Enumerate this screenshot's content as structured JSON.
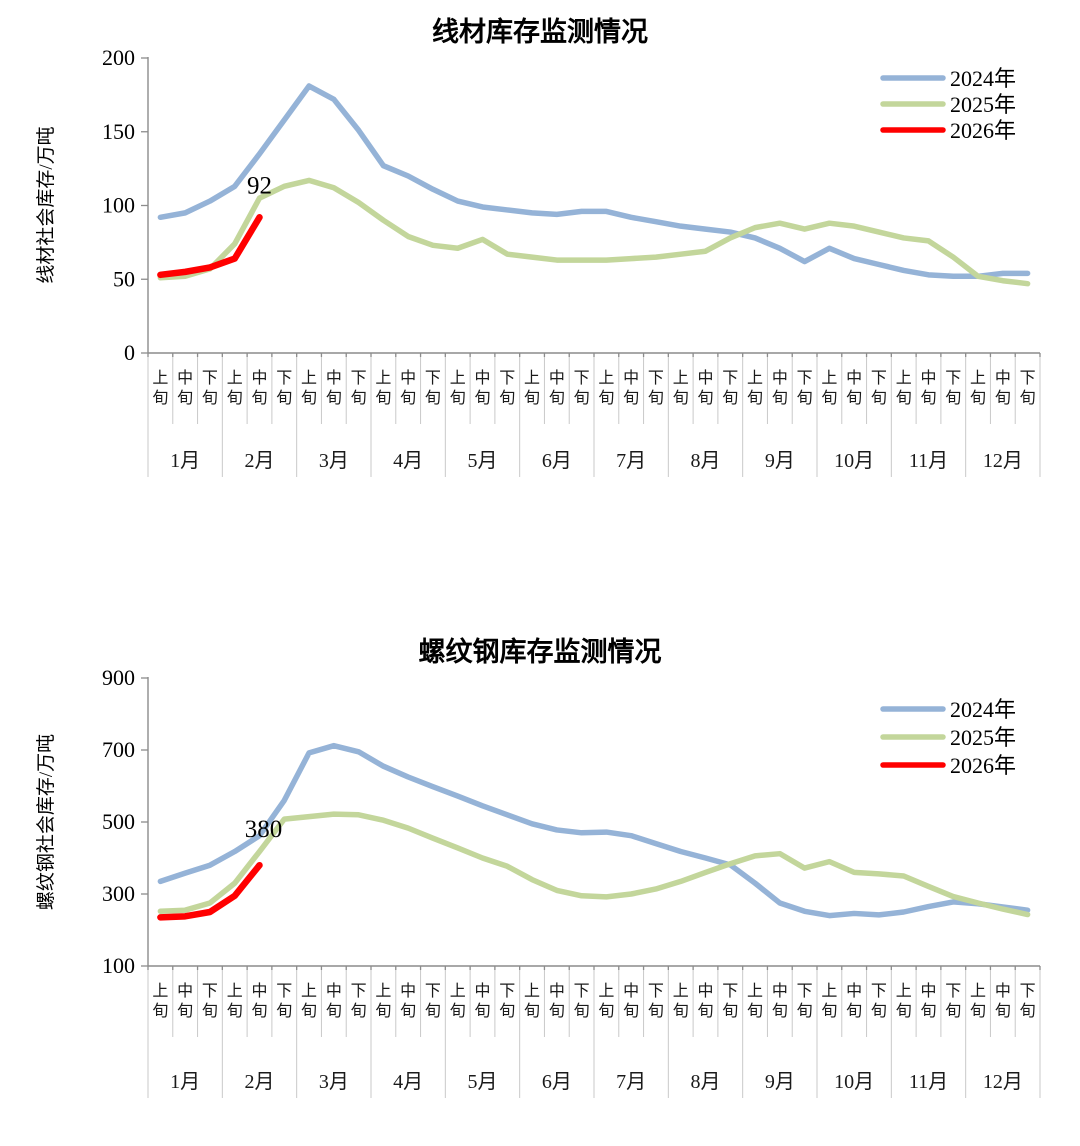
{
  "chart_data": [
    {
      "type": "line",
      "title": "线材库存监测情况",
      "ylabel": "线材社会库存/万吨",
      "ylim": [
        0,
        200
      ],
      "yticks": [
        0,
        50,
        100,
        150,
        200
      ],
      "grid": false,
      "legend_position": "top-right",
      "x_months": [
        "1月",
        "2月",
        "3月",
        "4月",
        "5月",
        "6月",
        "7月",
        "8月",
        "9月",
        "10月",
        "11月",
        "12月"
      ],
      "x_periods": [
        "上旬",
        "中旬",
        "下旬"
      ],
      "series": [
        {
          "name": "2024年",
          "color": "#95B3D7",
          "values": [
            92,
            95,
            103,
            113,
            135,
            158,
            181,
            172,
            151,
            127,
            120,
            111,
            103,
            99,
            97,
            95,
            94,
            96,
            96,
            92,
            89,
            86,
            84,
            82,
            78,
            71,
            62,
            71,
            64,
            60,
            56,
            53,
            52,
            52,
            54,
            54
          ]
        },
        {
          "name": "2025年",
          "color": "#C3D69B",
          "values": [
            51,
            52,
            57,
            74,
            105,
            113,
            117,
            112,
            102,
            90,
            79,
            73,
            71,
            77,
            67,
            65,
            63,
            63,
            63,
            64,
            65,
            67,
            69,
            78,
            85,
            88,
            84,
            88,
            86,
            82,
            78,
            76,
            65,
            52,
            49,
            47
          ]
        },
        {
          "name": "2026年",
          "color": "#FF0000",
          "values": [
            53,
            55,
            58,
            64,
            92
          ]
        }
      ],
      "annotation": {
        "text": "92",
        "color": "#FF0000",
        "series_index": 2,
        "point_index": 4
      }
    },
    {
      "type": "line",
      "title": "螺纹钢库存监测情况",
      "ylabel": "螺纹钢社会库存/万吨",
      "ylim": [
        100,
        900
      ],
      "yticks": [
        100,
        300,
        500,
        700,
        900
      ],
      "grid": false,
      "legend_position": "top-right",
      "x_months": [
        "1月",
        "2月",
        "3月",
        "4月",
        "5月",
        "6月",
        "7月",
        "8月",
        "9月",
        "10月",
        "11月",
        "12月"
      ],
      "x_periods": [
        "上旬",
        "中旬",
        "下旬"
      ],
      "series": [
        {
          "name": "2024年",
          "color": "#95B3D7",
          "values": [
            335,
            358,
            380,
            418,
            462,
            560,
            692,
            712,
            695,
            655,
            625,
            598,
            572,
            545,
            520,
            495,
            478,
            470,
            472,
            462,
            440,
            418,
            400,
            381,
            330,
            275,
            252,
            240,
            246,
            242,
            250,
            265,
            278,
            273,
            264,
            255
          ]
        },
        {
          "name": "2025年",
          "color": "#C3D69B",
          "values": [
            252,
            255,
            275,
            330,
            418,
            508,
            515,
            522,
            520,
            505,
            483,
            455,
            428,
            400,
            377,
            340,
            310,
            295,
            292,
            300,
            314,
            335,
            360,
            384,
            406,
            412,
            372,
            390,
            360,
            356,
            350,
            321,
            293,
            275,
            258,
            243
          ]
        },
        {
          "name": "2026年",
          "color": "#FF0000",
          "values": [
            235,
            238,
            250,
            295,
            380
          ]
        }
      ],
      "annotation": {
        "text": "380",
        "color": "#FF0000",
        "series_index": 2,
        "point_index": 4
      }
    }
  ]
}
